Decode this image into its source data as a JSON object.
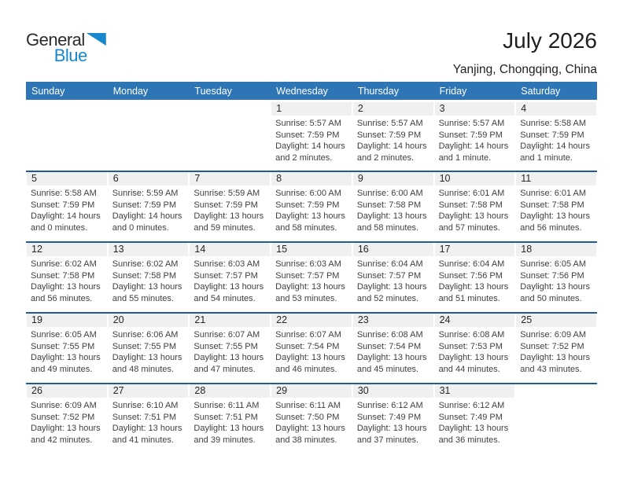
{
  "logo": {
    "general": "General",
    "blue": "Blue"
  },
  "header": {
    "title": "July 2026",
    "subtitle": "Yanjing, Chongqing, China"
  },
  "colors": {
    "header_bar": "#2E75B6",
    "row_divider": "#1F5C99",
    "date_strip": "#F0F0F0",
    "logo_blue": "#1787CE"
  },
  "day_headers": [
    "Sunday",
    "Monday",
    "Tuesday",
    "Wednesday",
    "Thursday",
    "Friday",
    "Saturday"
  ],
  "weeks": [
    [
      null,
      null,
      null,
      {
        "date": "1",
        "sunrise": "Sunrise: 5:57 AM",
        "sunset": "Sunset: 7:59 PM",
        "daylight": "Daylight: 14 hours and 2 minutes."
      },
      {
        "date": "2",
        "sunrise": "Sunrise: 5:57 AM",
        "sunset": "Sunset: 7:59 PM",
        "daylight": "Daylight: 14 hours and 2 minutes."
      },
      {
        "date": "3",
        "sunrise": "Sunrise: 5:57 AM",
        "sunset": "Sunset: 7:59 PM",
        "daylight": "Daylight: 14 hours and 1 minute."
      },
      {
        "date": "4",
        "sunrise": "Sunrise: 5:58 AM",
        "sunset": "Sunset: 7:59 PM",
        "daylight": "Daylight: 14 hours and 1 minute."
      }
    ],
    [
      {
        "date": "5",
        "sunrise": "Sunrise: 5:58 AM",
        "sunset": "Sunset: 7:59 PM",
        "daylight": "Daylight: 14 hours and 0 minutes."
      },
      {
        "date": "6",
        "sunrise": "Sunrise: 5:59 AM",
        "sunset": "Sunset: 7:59 PM",
        "daylight": "Daylight: 14 hours and 0 minutes."
      },
      {
        "date": "7",
        "sunrise": "Sunrise: 5:59 AM",
        "sunset": "Sunset: 7:59 PM",
        "daylight": "Daylight: 13 hours and 59 minutes."
      },
      {
        "date": "8",
        "sunrise": "Sunrise: 6:00 AM",
        "sunset": "Sunset: 7:59 PM",
        "daylight": "Daylight: 13 hours and 58 minutes."
      },
      {
        "date": "9",
        "sunrise": "Sunrise: 6:00 AM",
        "sunset": "Sunset: 7:58 PM",
        "daylight": "Daylight: 13 hours and 58 minutes."
      },
      {
        "date": "10",
        "sunrise": "Sunrise: 6:01 AM",
        "sunset": "Sunset: 7:58 PM",
        "daylight": "Daylight: 13 hours and 57 minutes."
      },
      {
        "date": "11",
        "sunrise": "Sunrise: 6:01 AM",
        "sunset": "Sunset: 7:58 PM",
        "daylight": "Daylight: 13 hours and 56 minutes."
      }
    ],
    [
      {
        "date": "12",
        "sunrise": "Sunrise: 6:02 AM",
        "sunset": "Sunset: 7:58 PM",
        "daylight": "Daylight: 13 hours and 56 minutes."
      },
      {
        "date": "13",
        "sunrise": "Sunrise: 6:02 AM",
        "sunset": "Sunset: 7:58 PM",
        "daylight": "Daylight: 13 hours and 55 minutes."
      },
      {
        "date": "14",
        "sunrise": "Sunrise: 6:03 AM",
        "sunset": "Sunset: 7:57 PM",
        "daylight": "Daylight: 13 hours and 54 minutes."
      },
      {
        "date": "15",
        "sunrise": "Sunrise: 6:03 AM",
        "sunset": "Sunset: 7:57 PM",
        "daylight": "Daylight: 13 hours and 53 minutes."
      },
      {
        "date": "16",
        "sunrise": "Sunrise: 6:04 AM",
        "sunset": "Sunset: 7:57 PM",
        "daylight": "Daylight: 13 hours and 52 minutes."
      },
      {
        "date": "17",
        "sunrise": "Sunrise: 6:04 AM",
        "sunset": "Sunset: 7:56 PM",
        "daylight": "Daylight: 13 hours and 51 minutes."
      },
      {
        "date": "18",
        "sunrise": "Sunrise: 6:05 AM",
        "sunset": "Sunset: 7:56 PM",
        "daylight": "Daylight: 13 hours and 50 minutes."
      }
    ],
    [
      {
        "date": "19",
        "sunrise": "Sunrise: 6:05 AM",
        "sunset": "Sunset: 7:55 PM",
        "daylight": "Daylight: 13 hours and 49 minutes."
      },
      {
        "date": "20",
        "sunrise": "Sunrise: 6:06 AM",
        "sunset": "Sunset: 7:55 PM",
        "daylight": "Daylight: 13 hours and 48 minutes."
      },
      {
        "date": "21",
        "sunrise": "Sunrise: 6:07 AM",
        "sunset": "Sunset: 7:55 PM",
        "daylight": "Daylight: 13 hours and 47 minutes."
      },
      {
        "date": "22",
        "sunrise": "Sunrise: 6:07 AM",
        "sunset": "Sunset: 7:54 PM",
        "daylight": "Daylight: 13 hours and 46 minutes."
      },
      {
        "date": "23",
        "sunrise": "Sunrise: 6:08 AM",
        "sunset": "Sunset: 7:54 PM",
        "daylight": "Daylight: 13 hours and 45 minutes."
      },
      {
        "date": "24",
        "sunrise": "Sunrise: 6:08 AM",
        "sunset": "Sunset: 7:53 PM",
        "daylight": "Daylight: 13 hours and 44 minutes."
      },
      {
        "date": "25",
        "sunrise": "Sunrise: 6:09 AM",
        "sunset": "Sunset: 7:52 PM",
        "daylight": "Daylight: 13 hours and 43 minutes."
      }
    ],
    [
      {
        "date": "26",
        "sunrise": "Sunrise: 6:09 AM",
        "sunset": "Sunset: 7:52 PM",
        "daylight": "Daylight: 13 hours and 42 minutes."
      },
      {
        "date": "27",
        "sunrise": "Sunrise: 6:10 AM",
        "sunset": "Sunset: 7:51 PM",
        "daylight": "Daylight: 13 hours and 41 minutes."
      },
      {
        "date": "28",
        "sunrise": "Sunrise: 6:11 AM",
        "sunset": "Sunset: 7:51 PM",
        "daylight": "Daylight: 13 hours and 39 minutes."
      },
      {
        "date": "29",
        "sunrise": "Sunrise: 6:11 AM",
        "sunset": "Sunset: 7:50 PM",
        "daylight": "Daylight: 13 hours and 38 minutes."
      },
      {
        "date": "30",
        "sunrise": "Sunrise: 6:12 AM",
        "sunset": "Sunset: 7:49 PM",
        "daylight": "Daylight: 13 hours and 37 minutes."
      },
      {
        "date": "31",
        "sunrise": "Sunrise: 6:12 AM",
        "sunset": "Sunset: 7:49 PM",
        "daylight": "Daylight: 13 hours and 36 minutes."
      },
      null
    ]
  ]
}
